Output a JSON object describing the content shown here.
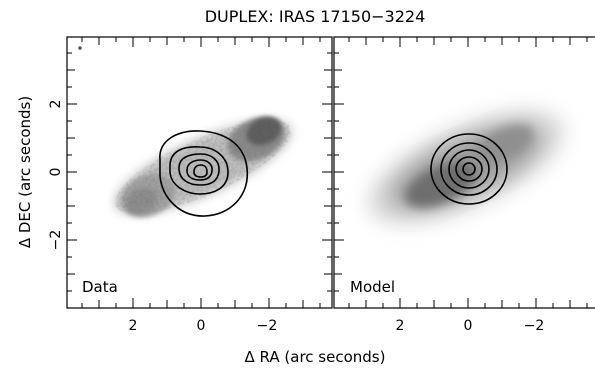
{
  "figure": {
    "title": "DUPLEX: IRAS 17150−3224",
    "xlabel": "Δ RA (arc seconds)",
    "ylabel": "Δ DEC (arc seconds)",
    "panels": [
      {
        "label": "Data",
        "xticks": [
          "2",
          "0",
          "−2"
        ],
        "yticks": [
          "2",
          "0",
          "−2"
        ]
      },
      {
        "label": "Model",
        "xticks": [
          "2",
          "0",
          "−2"
        ],
        "yticks": []
      }
    ],
    "colors": {
      "ink": "#000000",
      "background": "#ffffff",
      "nebula": "#6f6f6f"
    }
  }
}
